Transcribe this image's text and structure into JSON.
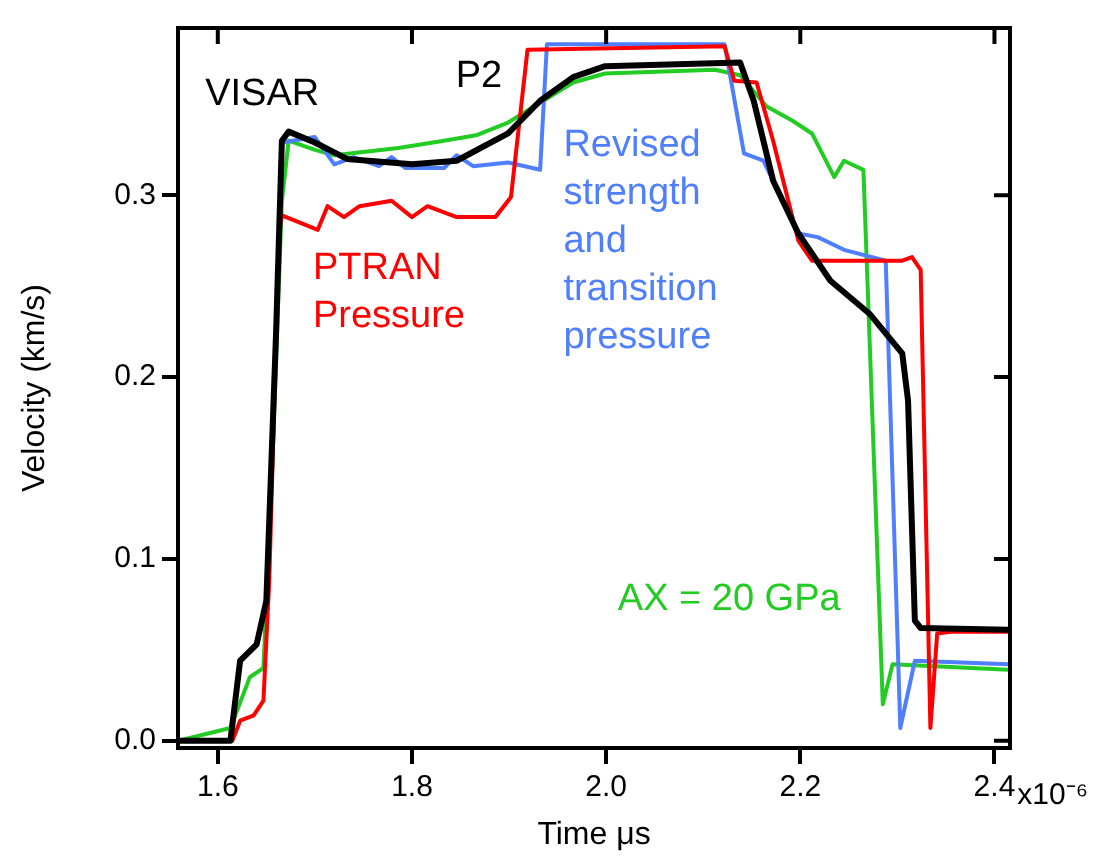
{
  "chart_data": {
    "type": "line",
    "xlabel": "Time μs",
    "ylabel": "Velocity (km/s)",
    "xlim": [
      1.559,
      2.416
    ],
    "xticks": [
      1.6,
      1.8,
      {
        "value": 2.0,
        "label": "2.0"
      },
      2.2,
      2.4
    ],
    "ylim": [
      -0.004,
      0.392
    ],
    "yticks": [
      {
        "value": 0,
        "label": "0.0"
      },
      0.1,
      0.2,
      0.3
    ],
    "grid": false,
    "marker": "none",
    "line_style": "solid",
    "annotations": [
      "P2",
      "x10⁻⁶"
    ],
    "series": [
      {
        "name": "VISAR",
        "color": "#000000",
        "x": [
          1.559,
          1.613,
          1.623,
          1.64,
          1.65,
          1.66,
          1.666,
          1.673,
          1.7,
          1.733,
          1.8,
          1.846,
          1.899,
          1.932,
          1.966,
          1.999,
          2.138,
          2.152,
          2.172,
          2.198,
          2.231,
          2.271,
          2.305,
          2.311,
          2.318,
          2.324,
          2.414
        ],
        "values": [
          0,
          0,
          0.044,
          0.053,
          0.077,
          0.224,
          0.33,
          0.335,
          0.329,
          0.32,
          0.317,
          0.319,
          0.334,
          0.352,
          0.365,
          0.371,
          0.373,
          0.352,
          0.308,
          0.279,
          0.253,
          0.235,
          0.213,
          0.187,
          0.066,
          0.062,
          0.061
        ]
      },
      {
        "name": "PTRAN Pressure",
        "color": "#ff0000",
        "x": [
          1.559,
          1.615,
          1.623,
          1.637,
          1.647,
          1.653,
          1.663,
          1.666,
          1.703,
          1.713,
          1.73,
          1.746,
          1.779,
          1.8,
          1.816,
          1.846,
          1.886,
          1.902,
          1.919,
          2.122,
          2.132,
          2.155,
          2.172,
          2.198,
          2.212,
          2.305,
          2.315,
          2.324,
          2.334,
          2.341,
          2.357,
          2.414
        ],
        "values": [
          0,
          0,
          0.011,
          0.014,
          0.022,
          0.088,
          0.279,
          0.289,
          0.281,
          0.294,
          0.288,
          0.294,
          0.297,
          0.288,
          0.294,
          0.288,
          0.288,
          0.299,
          0.38,
          0.382,
          0.363,
          0.362,
          0.33,
          0.275,
          0.264,
          0.264,
          0.266,
          0.259,
          0.007,
          0.059,
          0.06,
          0.06
        ]
      },
      {
        "name": "Revised strength and transition pressure",
        "color": "#4f7fff",
        "x": [
          1.666,
          1.7,
          1.72,
          1.74,
          1.766,
          1.779,
          1.793,
          1.833,
          1.846,
          1.863,
          1.899,
          1.932,
          1.939,
          2.122,
          2.142,
          2.162,
          2.198,
          2.218,
          2.245,
          2.288,
          2.303,
          2.318,
          2.414
        ],
        "values": [
          0.329,
          0.332,
          0.317,
          0.321,
          0.316,
          0.321,
          0.315,
          0.315,
          0.322,
          0.316,
          0.318,
          0.314,
          0.383,
          0.383,
          0.323,
          0.319,
          0.279,
          0.277,
          0.27,
          0.264,
          0.007,
          0.044,
          0.042
        ]
      },
      {
        "name": "AX = 20 GPa",
        "color": "#22cc22",
        "x": [
          1.559,
          1.613,
          1.633,
          1.647,
          1.656,
          1.666,
          1.673,
          1.7,
          1.72,
          1.786,
          1.833,
          1.866,
          1.899,
          1.926,
          1.966,
          1.999,
          2.112,
          2.138,
          2.165,
          2.192,
          2.212,
          2.235,
          2.245,
          2.265,
          2.285,
          2.295,
          2.414
        ],
        "values": [
          0,
          0.007,
          0.035,
          0.04,
          0.15,
          0.297,
          0.33,
          0.325,
          0.322,
          0.326,
          0.33,
          0.333,
          0.34,
          0.349,
          0.362,
          0.367,
          0.369,
          0.366,
          0.349,
          0.341,
          0.334,
          0.31,
          0.319,
          0.314,
          0.02,
          0.042,
          0.039
        ]
      }
    ]
  }
}
